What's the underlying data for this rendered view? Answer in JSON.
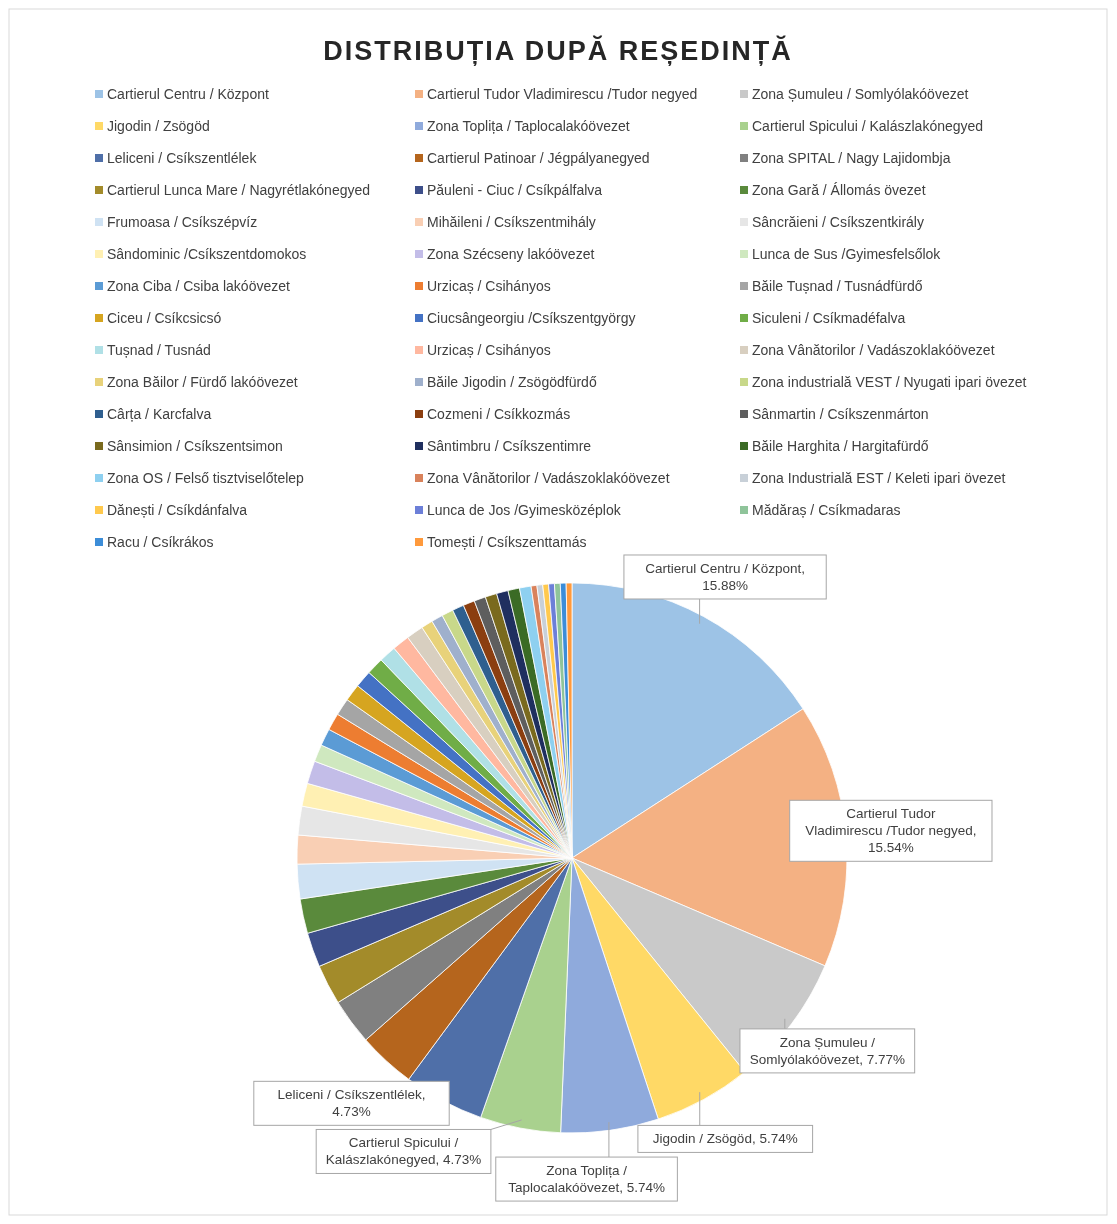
{
  "chart_data": {
    "type": "pie",
    "title": "DISTRIBUȚIA DUPĂ REȘEDINȚĂ",
    "categories": [
      "Cartierul Centru / Központ",
      "Cartierul Tudor Vladimirescu /Tudor negyed",
      "Zona Șumuleu / Somlyólakóövezet",
      "Jigodin / Zsögöd",
      "Zona Toplița / Taplocalakóövezet",
      "Cartierul Spicului / Kalászlakónegyed",
      "Leliceni / Csíkszentlélek",
      "Cartierul Patinoar / Jégpályanegyed",
      "Zona SPITAL / Nagy Lajidombja",
      "Cartierul Lunca Mare / Nagyrétlakónegyed",
      "Păuleni - Ciuc / Csíkpálfalva",
      "Zona Gară / Állomás övezet",
      "Frumoasa / Csíkszépvíz",
      "Mihăileni / Csíkszentmihály",
      "Sâncrăieni / Csíkszentkirály",
      "Sândominic /Csíkszentdomokos",
      "Zona Szécseny lakóövezet",
      "Lunca de Sus /Gyimesfelsőlok",
      "Zona Ciba / Csiba lakóövezet",
      "Urzicaș / Csihányos",
      "Băile Tușnad / Tusnádfürdő",
      "Ciceu / Csíkcsicsó",
      "Ciucsângeorgiu /Csíkszentgyörgy",
      "Siculeni / Csíkmadéfalva",
      "Tușnad / Tusnád",
      "Urzicaș / Csihányos",
      "Zona Vânătorilor / Vadászoklakóövezet",
      "Zona Băilor / Fürdő lakóövezet",
      "Băile Jigodin / Zsögödfürdő",
      "Zona industrială VEST / Nyugati ipari övezet",
      "Cârța / Karcfalva",
      "Cozmeni / Csíkkozmás",
      "Sânmartin / Csíkszenmárton",
      "Sânsimion / Csíkszentsimon",
      "Sântimbru / Csíkszentimre",
      "Băile Harghita / Hargitafürdő",
      "Zona OS / Felső tisztviselőtelep",
      "Zona Vânătorilor / Vadászoklakóövezet",
      "Zona Industrială EST / Keleti ipari övezet",
      "Dănești / Csíkdánfalva",
      "Lunca de Jos /Gyimesközéplok",
      "Mădăraș / Csíkmadaras",
      "Racu / Csíkrákos",
      "Tomești / Csíkszenttamás"
    ],
    "values": [
      15.88,
      15.54,
      7.77,
      5.74,
      5.74,
      4.73,
      4.73,
      3.38,
      2.7,
      2.36,
      2.03,
      2.03,
      2.03,
      1.69,
      1.69,
      1.35,
      1.35,
      1.01,
      1.01,
      1.01,
      1.01,
      1.01,
      1.01,
      1.01,
      1.01,
      1.01,
      1.01,
      0.68,
      0.68,
      0.68,
      0.68,
      0.68,
      0.68,
      0.68,
      0.68,
      0.68,
      0.68,
      0.34,
      0.34,
      0.34,
      0.34,
      0.34,
      0.34,
      0.34
    ],
    "colors": [
      "#9dc3e6",
      "#f4b183",
      "#c9c9c9",
      "#ffd966",
      "#8faadc",
      "#a9d18e",
      "#4f6fa8",
      "#b5651d",
      "#808080",
      "#a38b2a",
      "#3d4f8a",
      "#5a8a3c",
      "#cfe2f3",
      "#f9cfb4",
      "#e6e6e6",
      "#fff0b3",
      "#c3bde8",
      "#cfe8bf",
      "#5b9bd5",
      "#ed7d31",
      "#a5a5a5",
      "#d6a520",
      "#4472c4",
      "#70ad47",
      "#b0e0e6",
      "#ffb8a0",
      "#d8cfc0",
      "#e8d27a",
      "#9fb0cc",
      "#c8d88a",
      "#2f5f8f",
      "#8b3e10",
      "#5e5e5e",
      "#7a6a1e",
      "#1f2f5f",
      "#3b6b25",
      "#8ed0f0",
      "#d9825b",
      "#c8d0d8",
      "#ffc94d",
      "#6c7fd8",
      "#8fc49a",
      "#3c8dd8",
      "#ff9a3c"
    ],
    "value_labels": [
      "Cartierul Centru / Központ, 15.88%",
      "Cartierul Tudor Vladimirescu /Tudor negyed, 15.54%",
      "Zona Șumuleu / Somlyólakóövezet, 7.77%",
      "Jigodin / Zsögöd, 5.74%",
      "Zona Toplița / Taplocalakóövezet, 5.74%",
      "Cartierul Spicului / Kalászlakónegyed, 4.73%",
      "Leliceni / Csíkszentlélek, 4.73%",
      null,
      null,
      null,
      null,
      null,
      null,
      null,
      null,
      null,
      null,
      null,
      null,
      null,
      null,
      null,
      null,
      null,
      null,
      null,
      null,
      null,
      null,
      null,
      null,
      null,
      null,
      null,
      null,
      null,
      null,
      null,
      null,
      null,
      null,
      null,
      null,
      null
    ],
    "legend": "top"
  }
}
